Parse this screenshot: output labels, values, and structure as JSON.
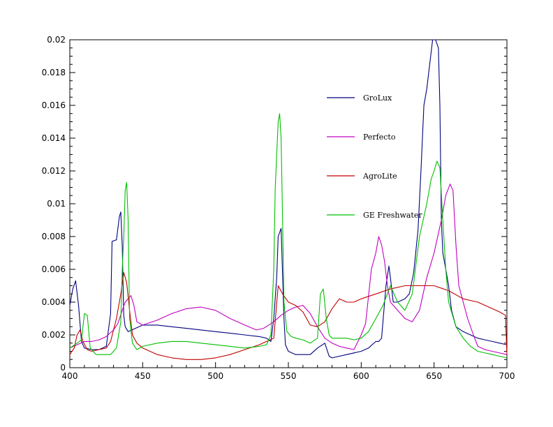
{
  "chart_data": {
    "type": "line",
    "title": "",
    "xlabel": "",
    "ylabel": "",
    "xlim": [
      400,
      700
    ],
    "ylim": [
      0,
      0.02
    ],
    "x_ticks": [
      "400",
      "450",
      "500",
      "550",
      "600",
      "650",
      "700"
    ],
    "y_ticks": [
      "0",
      "0.002",
      "0.004",
      "0.006",
      "0.008",
      "0.01",
      "0.012",
      "0.014",
      "0.016",
      "0.018",
      "0.02"
    ],
    "grid": false,
    "legend_position": "upper-right",
    "series": [
      {
        "name": "GroLux",
        "color": "#000080",
        "points": [
          [
            400,
            0.0038
          ],
          [
            402,
            0.0048
          ],
          [
            404,
            0.0053
          ],
          [
            406,
            0.0038
          ],
          [
            408,
            0.0016
          ],
          [
            410,
            0.0012
          ],
          [
            415,
            0.0011
          ],
          [
            420,
            0.0011
          ],
          [
            425,
            0.0013
          ],
          [
            428,
            0.0033
          ],
          [
            429,
            0.0077
          ],
          [
            432,
            0.0078
          ],
          [
            434,
            0.0092
          ],
          [
            435,
            0.0095
          ],
          [
            436,
            0.0074
          ],
          [
            437,
            0.0032
          ],
          [
            438,
            0.0025
          ],
          [
            440,
            0.0022
          ],
          [
            445,
            0.0024
          ],
          [
            450,
            0.0026
          ],
          [
            460,
            0.0026
          ],
          [
            470,
            0.0025
          ],
          [
            480,
            0.0024
          ],
          [
            490,
            0.0023
          ],
          [
            500,
            0.0022
          ],
          [
            510,
            0.0021
          ],
          [
            520,
            0.002
          ],
          [
            530,
            0.0019
          ],
          [
            535,
            0.0018
          ],
          [
            538,
            0.0016
          ],
          [
            540,
            0.003
          ],
          [
            542,
            0.0055
          ],
          [
            543,
            0.008
          ],
          [
            545,
            0.0085
          ],
          [
            547,
            0.003
          ],
          [
            548,
            0.0014
          ],
          [
            550,
            0.001
          ],
          [
            555,
            0.0008
          ],
          [
            560,
            0.0008
          ],
          [
            565,
            0.0008
          ],
          [
            570,
            0.0012
          ],
          [
            575,
            0.0015
          ],
          [
            578,
            0.0007
          ],
          [
            580,
            0.0006
          ],
          [
            590,
            0.0008
          ],
          [
            600,
            0.001
          ],
          [
            605,
            0.0012
          ],
          [
            610,
            0.0016
          ],
          [
            612,
            0.0016
          ],
          [
            614,
            0.0018
          ],
          [
            617,
            0.005
          ],
          [
            619,
            0.0062
          ],
          [
            620,
            0.0055
          ],
          [
            622,
            0.004
          ],
          [
            625,
            0.004
          ],
          [
            630,
            0.0042
          ],
          [
            633,
            0.0045
          ],
          [
            636,
            0.0058
          ],
          [
            639,
            0.0084
          ],
          [
            641,
            0.012
          ],
          [
            643,
            0.016
          ],
          [
            645,
            0.017
          ],
          [
            647,
            0.0185
          ],
          [
            649,
            0.02
          ],
          [
            651,
            0.02
          ],
          [
            653,
            0.0195
          ],
          [
            654,
            0.016
          ],
          [
            655,
            0.009
          ],
          [
            656,
            0.007
          ],
          [
            658,
            0.006
          ],
          [
            660,
            0.005
          ],
          [
            662,
            0.0035
          ],
          [
            665,
            0.0025
          ],
          [
            670,
            0.0022
          ],
          [
            675,
            0.002
          ],
          [
            680,
            0.0018
          ],
          [
            685,
            0.0017
          ],
          [
            690,
            0.0016
          ],
          [
            695,
            0.0015
          ],
          [
            700,
            0.0014
          ]
        ]
      },
      {
        "name": "Perfecto",
        "color": "#C000C0",
        "points": [
          [
            400,
            0.0012
          ],
          [
            405,
            0.0014
          ],
          [
            410,
            0.0016
          ],
          [
            415,
            0.0016
          ],
          [
            420,
            0.0017
          ],
          [
            425,
            0.0019
          ],
          [
            430,
            0.0023
          ],
          [
            433,
            0.0027
          ],
          [
            436,
            0.0035
          ],
          [
            438,
            0.004
          ],
          [
            440,
            0.0042
          ],
          [
            442,
            0.0044
          ],
          [
            444,
            0.0038
          ],
          [
            446,
            0.0028
          ],
          [
            450,
            0.0026
          ],
          [
            460,
            0.0029
          ],
          [
            470,
            0.0033
          ],
          [
            480,
            0.0036
          ],
          [
            490,
            0.0037
          ],
          [
            500,
            0.0035
          ],
          [
            510,
            0.003
          ],
          [
            520,
            0.0026
          ],
          [
            528,
            0.0023
          ],
          [
            533,
            0.0024
          ],
          [
            540,
            0.0028
          ],
          [
            545,
            0.0032
          ],
          [
            550,
            0.0035
          ],
          [
            555,
            0.0037
          ],
          [
            560,
            0.0038
          ],
          [
            565,
            0.0033
          ],
          [
            570,
            0.0025
          ],
          [
            575,
            0.0018
          ],
          [
            580,
            0.0015
          ],
          [
            585,
            0.0013
          ],
          [
            590,
            0.0012
          ],
          [
            595,
            0.0011
          ],
          [
            600,
            0.002
          ],
          [
            603,
            0.0027
          ],
          [
            607,
            0.006
          ],
          [
            610,
            0.007
          ],
          [
            612,
            0.008
          ],
          [
            614,
            0.0075
          ],
          [
            616,
            0.0065
          ],
          [
            618,
            0.005
          ],
          [
            620,
            0.004
          ],
          [
            625,
            0.0035
          ],
          [
            630,
            0.003
          ],
          [
            635,
            0.0028
          ],
          [
            640,
            0.0035
          ],
          [
            645,
            0.0055
          ],
          [
            650,
            0.007
          ],
          [
            655,
            0.009
          ],
          [
            658,
            0.0105
          ],
          [
            661,
            0.0112
          ],
          [
            663,
            0.0108
          ],
          [
            665,
            0.0075
          ],
          [
            667,
            0.005
          ],
          [
            670,
            0.004
          ],
          [
            673,
            0.003
          ],
          [
            677,
            0.002
          ],
          [
            680,
            0.0013
          ],
          [
            685,
            0.0011
          ],
          [
            690,
            0.001
          ],
          [
            695,
            0.0009
          ],
          [
            700,
            0.0008
          ]
        ]
      },
      {
        "name": "AgroLite",
        "color": "#C00000",
        "points": [
          [
            400,
            0.0008
          ],
          [
            403,
            0.0012
          ],
          [
            405,
            0.002
          ],
          [
            407,
            0.0023
          ],
          [
            409,
            0.0016
          ],
          [
            412,
            0.0011
          ],
          [
            415,
            0.001
          ],
          [
            420,
            0.0011
          ],
          [
            425,
            0.0012
          ],
          [
            428,
            0.0016
          ],
          [
            432,
            0.003
          ],
          [
            435,
            0.0045
          ],
          [
            437,
            0.0058
          ],
          [
            439,
            0.0052
          ],
          [
            441,
            0.0035
          ],
          [
            443,
            0.002
          ],
          [
            446,
            0.0015
          ],
          [
            450,
            0.0012
          ],
          [
            460,
            0.0008
          ],
          [
            470,
            0.0006
          ],
          [
            480,
            0.0005
          ],
          [
            490,
            0.0005
          ],
          [
            500,
            0.0006
          ],
          [
            510,
            0.0008
          ],
          [
            520,
            0.0011
          ],
          [
            530,
            0.0014
          ],
          [
            540,
            0.0018
          ],
          [
            543,
            0.005
          ],
          [
            546,
            0.0045
          ],
          [
            550,
            0.004
          ],
          [
            555,
            0.0038
          ],
          [
            560,
            0.0034
          ],
          [
            565,
            0.0026
          ],
          [
            570,
            0.0025
          ],
          [
            575,
            0.0028
          ],
          [
            580,
            0.0036
          ],
          [
            585,
            0.0042
          ],
          [
            590,
            0.004
          ],
          [
            595,
            0.004
          ],
          [
            600,
            0.0042
          ],
          [
            610,
            0.0045
          ],
          [
            620,
            0.0048
          ],
          [
            630,
            0.005
          ],
          [
            640,
            0.005
          ],
          [
            650,
            0.005
          ],
          [
            660,
            0.0047
          ],
          [
            670,
            0.0042
          ],
          [
            680,
            0.004
          ],
          [
            690,
            0.0036
          ],
          [
            695,
            0.0034
          ],
          [
            699,
            0.0032
          ],
          [
            700,
            0.0008
          ]
        ]
      },
      {
        "name": "GE Freshwater",
        "color": "#00C000",
        "points": [
          [
            400,
            0.0012
          ],
          [
            405,
            0.0015
          ],
          [
            408,
            0.0017
          ],
          [
            410,
            0.0033
          ],
          [
            412,
            0.0032
          ],
          [
            414,
            0.0012
          ],
          [
            418,
            0.0008
          ],
          [
            422,
            0.0008
          ],
          [
            428,
            0.0008
          ],
          [
            430,
            0.001
          ],
          [
            432,
            0.0012
          ],
          [
            435,
            0.0028
          ],
          [
            436,
            0.006
          ],
          [
            437,
            0.008
          ],
          [
            438,
            0.0108
          ],
          [
            439,
            0.0113
          ],
          [
            440,
            0.009
          ],
          [
            441,
            0.003
          ],
          [
            443,
            0.0015
          ],
          [
            446,
            0.0011
          ],
          [
            450,
            0.0013
          ],
          [
            460,
            0.0015
          ],
          [
            470,
            0.0016
          ],
          [
            480,
            0.0016
          ],
          [
            490,
            0.0015
          ],
          [
            500,
            0.0014
          ],
          [
            510,
            0.0013
          ],
          [
            520,
            0.0012
          ],
          [
            530,
            0.0013
          ],
          [
            535,
            0.0014
          ],
          [
            538,
            0.002
          ],
          [
            540,
            0.006
          ],
          [
            541,
            0.011
          ],
          [
            543,
            0.015
          ],
          [
            544,
            0.0155
          ],
          [
            545,
            0.014
          ],
          [
            546,
            0.009
          ],
          [
            547,
            0.004
          ],
          [
            549,
            0.0022
          ],
          [
            552,
            0.0019
          ],
          [
            555,
            0.0018
          ],
          [
            560,
            0.0017
          ],
          [
            565,
            0.0015
          ],
          [
            570,
            0.0018
          ],
          [
            572,
            0.0045
          ],
          [
            574,
            0.0048
          ],
          [
            576,
            0.003
          ],
          [
            578,
            0.002
          ],
          [
            580,
            0.0018
          ],
          [
            590,
            0.0018
          ],
          [
            595,
            0.0017
          ],
          [
            600,
            0.0018
          ],
          [
            605,
            0.0022
          ],
          [
            610,
            0.003
          ],
          [
            615,
            0.0038
          ],
          [
            620,
            0.005
          ],
          [
            625,
            0.004
          ],
          [
            630,
            0.0035
          ],
          [
            635,
            0.0045
          ],
          [
            640,
            0.008
          ],
          [
            645,
            0.01
          ],
          [
            648,
            0.0115
          ],
          [
            650,
            0.012
          ],
          [
            652,
            0.0126
          ],
          [
            654,
            0.0122
          ],
          [
            656,
            0.009
          ],
          [
            658,
            0.006
          ],
          [
            660,
            0.004
          ],
          [
            665,
            0.0025
          ],
          [
            670,
            0.0018
          ],
          [
            675,
            0.0013
          ],
          [
            680,
            0.001
          ],
          [
            685,
            0.0009
          ],
          [
            690,
            0.0008
          ],
          [
            695,
            0.0007
          ],
          [
            700,
            0.0006
          ]
        ]
      }
    ]
  }
}
